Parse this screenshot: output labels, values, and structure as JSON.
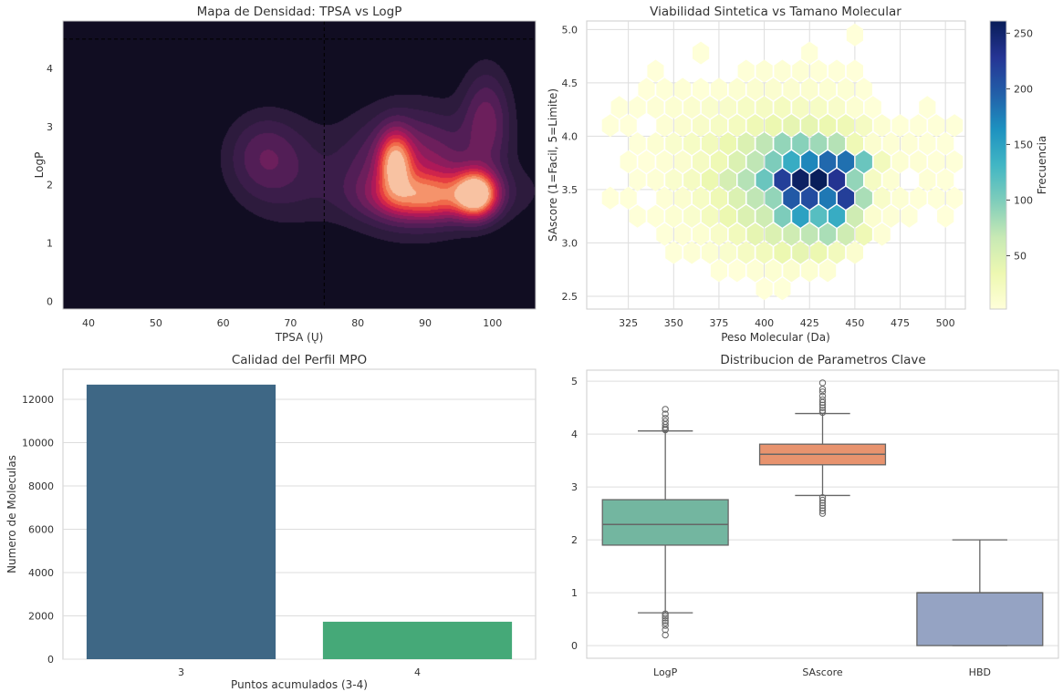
{
  "chart_data": [
    {
      "type": "heatmap",
      "subtype": "kde-filled-contour",
      "title": "Mapa de Densidad: TPSA vs LogP",
      "xlabel": "TPSA (Ų)",
      "ylabel": "LogP",
      "xlim": [
        36.2,
        106.4
      ],
      "ylim": [
        -0.13,
        4.81
      ],
      "xticks": [
        40,
        50,
        60,
        70,
        80,
        90,
        100
      ],
      "yticks": [
        0,
        1,
        2,
        3,
        4
      ],
      "reference_lines": {
        "x": 75,
        "y": 4.5,
        "style": "dashed"
      },
      "density_peaks": [
        {
          "x": 97.5,
          "y": 1.85
        },
        {
          "x": 85.5,
          "y": 2.4
        },
        {
          "x": 66,
          "y": 2.5
        },
        {
          "x": 70,
          "y": 2.55
        },
        {
          "x": 99,
          "y": 3.3
        }
      ],
      "palette": "rocket",
      "background": "#110d22",
      "grid": false
    },
    {
      "type": "heatmap",
      "subtype": "hexbin",
      "title": "Viabilidad Sintetica vs Tamano Molecular",
      "xlabel": "Peso Molecular (Da)",
      "ylabel": "SAscore (1=Facil, 5=Limite)",
      "xlim": [
        302,
        511
      ],
      "ylim": [
        2.38,
        5.08
      ],
      "xticks": [
        325,
        350,
        375,
        400,
        425,
        450,
        475,
        500
      ],
      "yticks": [
        "2.5",
        "3.0",
        "3.5",
        "4.0",
        "4.5",
        "5.0"
      ],
      "grid": true,
      "colormap": "YlGnBu",
      "colorbar": {
        "label": "Frecuencia",
        "range": [
          2,
          261
        ],
        "ticks": [
          50,
          100,
          150,
          200,
          250
        ]
      },
      "bin_x_centers": [
        310,
        320,
        330,
        340,
        350,
        360,
        370,
        380,
        390,
        400,
        410,
        420,
        430,
        440,
        450,
        460,
        470,
        480,
        490,
        500
      ],
      "bin_y_centers": [
        4.95,
        4.78,
        4.61,
        4.44,
        4.27,
        4.1,
        3.93,
        3.76,
        3.59,
        3.42,
        3.25,
        3.08,
        2.91,
        2.74,
        2.57
      ],
      "counts": [
        [
          0,
          0,
          0,
          0,
          0,
          0,
          0,
          0,
          0,
          0,
          0,
          0,
          0,
          0,
          2,
          0,
          0,
          0,
          0,
          0
        ],
        [
          0,
          0,
          0,
          0,
          0,
          3,
          0,
          0,
          0,
          0,
          0,
          3,
          0,
          0,
          0,
          0,
          0,
          0,
          0,
          0
        ],
        [
          0,
          0,
          0,
          2,
          0,
          0,
          0,
          0,
          4,
          5,
          5,
          6,
          4,
          3,
          2,
          0,
          0,
          0,
          0,
          0
        ],
        [
          0,
          0,
          2,
          4,
          5,
          4,
          6,
          8,
          9,
          10,
          9,
          10,
          8,
          7,
          4,
          0,
          0,
          0,
          0,
          0
        ],
        [
          0,
          3,
          3,
          5,
          8,
          10,
          12,
          14,
          18,
          20,
          22,
          20,
          18,
          14,
          8,
          3,
          0,
          0,
          3,
          0
        ],
        [
          3,
          2,
          0,
          6,
          10,
          15,
          18,
          22,
          30,
          35,
          40,
          40,
          35,
          30,
          20,
          8,
          4,
          3,
          4,
          3
        ],
        [
          0,
          0,
          3,
          8,
          12,
          18,
          25,
          35,
          50,
          70,
          90,
          95,
          85,
          75,
          30,
          10,
          6,
          5,
          4,
          3
        ],
        [
          0,
          3,
          2,
          6,
          10,
          20,
          30,
          50,
          70,
          100,
          140,
          170,
          190,
          185,
          110,
          25,
          8,
          6,
          4,
          3
        ],
        [
          0,
          0,
          3,
          5,
          12,
          20,
          35,
          55,
          75,
          110,
          220,
          255,
          260,
          230,
          90,
          20,
          8,
          0,
          5,
          3
        ],
        [
          2,
          3,
          0,
          5,
          10,
          18,
          30,
          50,
          70,
          90,
          200,
          210,
          180,
          220,
          80,
          15,
          7,
          4,
          3,
          2
        ],
        [
          0,
          0,
          3,
          4,
          8,
          12,
          22,
          35,
          50,
          60,
          100,
          150,
          120,
          140,
          60,
          10,
          5,
          3,
          0,
          2
        ],
        [
          0,
          0,
          0,
          3,
          5,
          8,
          15,
          25,
          40,
          50,
          60,
          70,
          80,
          60,
          30,
          5,
          0,
          0,
          0,
          0
        ],
        [
          0,
          0,
          0,
          0,
          3,
          5,
          8,
          12,
          20,
          25,
          35,
          40,
          35,
          25,
          10,
          0,
          0,
          0,
          0,
          0
        ],
        [
          0,
          0,
          0,
          0,
          0,
          0,
          3,
          2,
          5,
          8,
          10,
          8,
          6,
          0,
          0,
          0,
          0,
          0,
          0,
          0
        ],
        [
          0,
          0,
          0,
          0,
          0,
          0,
          0,
          0,
          0,
          2,
          3,
          0,
          0,
          0,
          0,
          0,
          0,
          0,
          0,
          0
        ]
      ]
    },
    {
      "type": "bar",
      "title": "Calidad del Perfil MPO",
      "xlabel": "Puntos acumulados (3-4)",
      "ylabel": "Numero de Moleculas",
      "categories": [
        "3",
        "4"
      ],
      "values": [
        12680,
        1730
      ],
      "colors": [
        "#3e6785",
        "#45a978"
      ],
      "ylim": [
        0,
        13390
      ],
      "yticks": [
        0,
        2000,
        4000,
        6000,
        8000,
        10000,
        12000
      ],
      "grid": true
    },
    {
      "type": "box",
      "title": "Distribucion de Parametros Clave",
      "xlabel": "",
      "ylabel": "",
      "categories": [
        "LogP",
        "SAscore",
        "HBD"
      ],
      "ylim": [
        -0.24,
        5.21
      ],
      "yticks": [
        0,
        1,
        2,
        3,
        4,
        5
      ],
      "grid": true,
      "boxes": [
        {
          "name": "LogP",
          "whislo": 0.62,
          "q1": 1.9,
          "median": 2.29,
          "q3": 2.76,
          "whishi": 4.06,
          "outliers": [
            0.2,
            0.3,
            0.38,
            0.43,
            0.47,
            0.52,
            0.56,
            0.6,
            4.08,
            4.1,
            4.13,
            4.18,
            4.24,
            4.3,
            4.38,
            4.47
          ],
          "color": "#73b6a0"
        },
        {
          "name": "SAscore",
          "whislo": 2.84,
          "q1": 3.42,
          "median": 3.62,
          "q3": 3.81,
          "whishi": 4.39,
          "outliers": [
            2.5,
            2.55,
            2.6,
            2.65,
            2.7,
            2.75,
            2.8,
            4.41,
            4.45,
            4.5,
            4.55,
            4.6,
            4.65,
            4.72,
            4.8,
            4.85,
            4.97
          ],
          "color": "#e8936e"
        },
        {
          "name": "HBD",
          "whislo": 0,
          "q1": 0,
          "median": 1,
          "q3": 1,
          "whishi": 2,
          "outliers": [],
          "color": "#95a3c3"
        }
      ]
    }
  ]
}
